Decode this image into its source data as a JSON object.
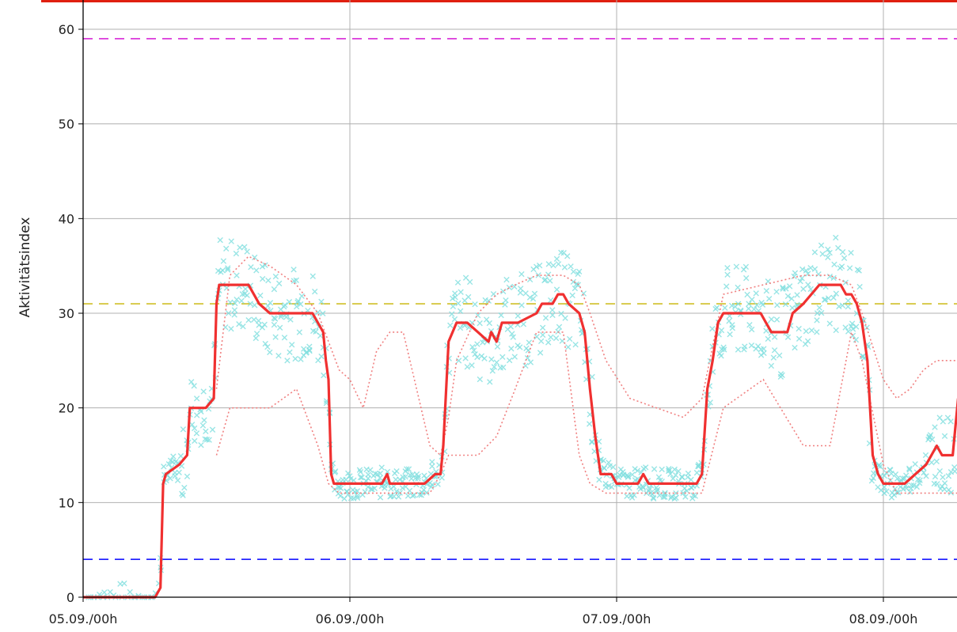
{
  "chart_data": {
    "type": "line",
    "title": "",
    "xlabel": "",
    "ylabel": "Aktivitätsindex",
    "xlim": [
      0,
      3.28
    ],
    "ylim": [
      0,
      60
    ],
    "grid": true,
    "x_ticks": [
      {
        "value": 0,
        "label": "05.09./00h"
      },
      {
        "value": 1,
        "label": "06.09./00h"
      },
      {
        "value": 2,
        "label": "07.09./00h"
      },
      {
        "value": 3,
        "label": "08.09./00h"
      }
    ],
    "y_ticks": [
      0,
      10,
      20,
      30,
      40,
      50,
      60
    ],
    "colors": {
      "main": "#f03030",
      "dotted": "#f08080",
      "scatter": "#7fdede",
      "upper_threshold": "#d000d0",
      "mid_threshold": "#c8b400",
      "low_threshold": "#0000ff",
      "top_border": "#e02010"
    },
    "reference_lines": [
      {
        "y": 59,
        "color": "#d000d0"
      },
      {
        "y": 31,
        "color": "#c8b400"
      },
      {
        "y": 4,
        "color": "#0000ff"
      }
    ],
    "series": [
      {
        "style": "solid",
        "x": [
          0,
          0.27,
          0.29,
          0.3,
          0.31,
          0.36,
          0.39,
          0.4,
          0.42,
          0.43,
          0.46,
          0.49,
          0.5,
          0.51,
          0.53,
          0.54,
          0.62,
          0.64,
          0.66,
          0.7,
          0.86,
          0.88,
          0.9,
          0.91,
          0.92,
          0.93,
          0.94,
          0.96,
          1.0,
          1.12,
          1.14,
          1.15,
          1.25,
          1.28,
          1.32,
          1.34,
          1.35,
          1.37,
          1.4,
          1.44,
          1.48,
          1.52,
          1.53,
          1.55,
          1.57,
          1.63,
          1.7,
          1.72,
          1.76,
          1.78,
          1.8,
          1.82,
          1.86,
          1.88,
          1.9,
          1.92,
          1.94,
          1.96,
          1.98,
          2.0,
          2.08,
          2.1,
          2.12,
          2.2,
          2.3,
          2.32,
          2.34,
          2.36,
          2.38,
          2.4,
          2.44,
          2.54,
          2.56,
          2.58,
          2.64,
          2.66,
          2.7,
          2.76,
          2.8,
          2.84,
          2.86,
          2.88,
          2.9,
          2.92,
          2.94,
          2.96,
          2.98,
          3.0,
          3.06,
          3.08,
          3.12,
          3.16,
          3.18,
          3.2,
          3.22,
          3.26,
          3.28
        ],
        "y": [
          0,
          0,
          1,
          12,
          13,
          14,
          15,
          20,
          20,
          20,
          20,
          21,
          31,
          33,
          33,
          33,
          33,
          32,
          31,
          30,
          30,
          29,
          28,
          25,
          23,
          13,
          12,
          12,
          12,
          12,
          13,
          12,
          12,
          12,
          13,
          13,
          16,
          27,
          29,
          29,
          28,
          27,
          28,
          27,
          29,
          29,
          30,
          31,
          31,
          32,
          32,
          31,
          30,
          28,
          22,
          17,
          13,
          13,
          13,
          12,
          12,
          13,
          12,
          12,
          12,
          13,
          22,
          25,
          29,
          30,
          30,
          30,
          29,
          28,
          28,
          30,
          31,
          33,
          33,
          33,
          32,
          32,
          31,
          29,
          25,
          15,
          13,
          12,
          12,
          12,
          13,
          14,
          15,
          16,
          15,
          15,
          21
        ]
      },
      {
        "style": "dotted",
        "x": [
          0.5,
          0.55,
          0.62,
          0.7,
          0.8,
          0.88,
          0.92,
          0.96,
          1.0,
          1.05,
          1.1,
          1.15,
          1.2,
          1.25,
          1.3,
          1.34,
          1.37,
          1.4,
          1.48,
          1.55,
          1.62,
          1.7,
          1.8,
          1.86,
          1.9,
          1.96,
          2.05,
          2.15,
          2.25,
          2.32,
          2.4,
          2.55,
          2.7,
          2.8,
          2.88,
          2.92,
          3.0,
          3.05,
          3.1,
          3.15,
          3.2,
          3.28
        ],
        "y": [
          22,
          34,
          36,
          35,
          33,
          30,
          27,
          24,
          23,
          20,
          26,
          28,
          28,
          22,
          16,
          15,
          19,
          25,
          30,
          32,
          33,
          34,
          34,
          33,
          30,
          25,
          21,
          20,
          19,
          21,
          32,
          33,
          34,
          34,
          33,
          30,
          23,
          21,
          22,
          24,
          25,
          25
        ]
      },
      {
        "style": "dotted",
        "x": [
          0.5,
          0.55,
          0.62,
          0.7,
          0.8,
          0.88,
          0.92,
          0.96,
          1.0,
          1.05,
          1.1,
          1.15,
          1.2,
          1.25,
          1.3,
          1.34,
          1.37,
          1.4,
          1.48,
          1.55,
          1.62,
          1.7,
          1.8,
          1.86,
          1.9,
          1.96,
          2.05,
          2.15,
          2.25,
          2.32,
          2.4,
          2.55,
          2.7,
          2.8,
          2.88,
          2.92,
          3.0,
          3.05,
          3.1,
          3.15,
          3.2,
          3.28
        ],
        "y": [
          15,
          20,
          20,
          20,
          22,
          16,
          12,
          11,
          11,
          11,
          11,
          11,
          11,
          11,
          11,
          13,
          15,
          15,
          15,
          17,
          22,
          28,
          28,
          15,
          12,
          11,
          11,
          11,
          11,
          11,
          20,
          23,
          16,
          16,
          28,
          25,
          14,
          11,
          11,
          11,
          11,
          11
        ]
      }
    ]
  }
}
